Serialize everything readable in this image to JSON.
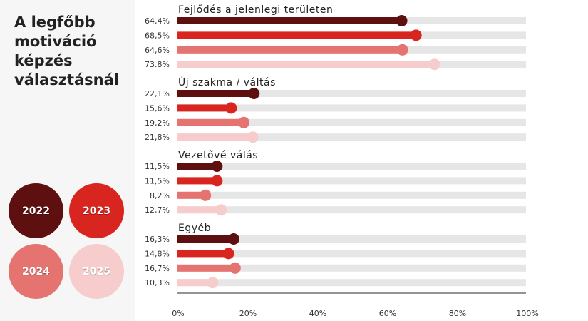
{
  "chart_data": {
    "type": "bar",
    "title": "A legfőbb motiváció képzés választásnál",
    "series_colors": [
      "#5e1010",
      "#d9251f",
      "#e57471",
      "#f6cdcc"
    ],
    "track_color": "#e6e6e6",
    "legend": [
      {
        "label": "2022",
        "color": "#5e1010"
      },
      {
        "label": "2023",
        "color": "#d9251f"
      },
      {
        "label": "2024",
        "color": "#e57471"
      },
      {
        "label": "2025",
        "color": "#f6cdcc"
      }
    ],
    "legend_position": "left-bottom",
    "groups": [
      {
        "name": "Fejlődés a jelenlegi területen",
        "values": [
          64.4,
          68.5,
          64.6,
          73.8
        ],
        "labels": [
          "64,4%",
          "68,5%",
          "64,6%",
          "73.8%"
        ]
      },
      {
        "name": "Új szakma / váltás",
        "values": [
          22.1,
          15.6,
          19.2,
          21.8
        ],
        "labels": [
          "22,1%",
          "15,6%",
          "19,2%",
          "21,8%"
        ]
      },
      {
        "name": "Vezetővé válás",
        "values": [
          11.5,
          11.5,
          8.2,
          12.7
        ],
        "labels": [
          "11,5%",
          "11,5%",
          "8,2%",
          "12,7%"
        ]
      },
      {
        "name": "Egyéb",
        "values": [
          16.3,
          14.8,
          16.7,
          10.3
        ],
        "labels": [
          "16,3%",
          "14,8%",
          "16,7%",
          "10,3%"
        ]
      }
    ],
    "xlim": [
      0,
      100
    ],
    "x_ticks": [
      "0%",
      "20%",
      "40%",
      "60%",
      "80%",
      "100%"
    ],
    "grid": false
  }
}
